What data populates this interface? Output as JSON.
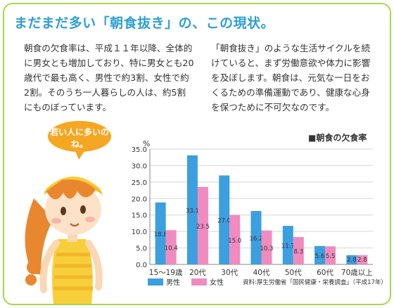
{
  "header": {
    "title": "まだまだ多い「朝食抜き」の、この現状。"
  },
  "body": {
    "left_paragraph": "朝食の欠食率は、平成１１年以降、全体的に男女とも増加しており、特に男女とも20歳代で最も高く、男性で約3割、女性で約2割。そのうち一人暮らしの人は、約5割にものぼっています。",
    "right_paragraph": "「朝食抜き」のような生活サイクルを続けていると、まず労働意欲や体力に影響を及ぼします。朝食は、元気な一日をおくるための準備運動であり、健康な心身を保つために不可欠なのです。"
  },
  "illustration": {
    "bubble_text": "若い人に多いのね。"
  },
  "chart_data": {
    "type": "bar",
    "title": "■朝食の欠食率",
    "unit": "%",
    "categories": [
      "15～19歳",
      "20代",
      "30代",
      "40代",
      "50代",
      "60代",
      "70歳以上"
    ],
    "series": [
      {
        "name": "男性",
        "values": [
          18.8,
          33.1,
          27.0,
          16.2,
          11.7,
          5.6,
          2.8
        ],
        "color": "#3b9fe0"
      },
      {
        "name": "女性",
        "values": [
          10.4,
          23.5,
          15.0,
          10.3,
          8.3,
          5.5,
          2.8
        ],
        "color": "#f08bbf"
      }
    ],
    "ylim": [
      0,
      35
    ],
    "yticks": [
      "35.0",
      "30.0",
      "25.0",
      "20.0",
      "15.0",
      "10.0",
      "5.0",
      "0.0"
    ],
    "grid": true,
    "legend": "bottom",
    "source": "資料:厚生労働省「国民健康・栄養調査」（平成17年）"
  },
  "colors": {
    "title": "#2f9fd3",
    "frame": "#a6d84a",
    "bubble": "#f5a623",
    "male": "#3b9fe0",
    "female": "#f08bbf"
  }
}
